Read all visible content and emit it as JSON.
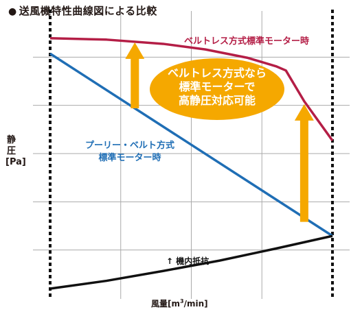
{
  "title": "送風機特性曲線図による比較",
  "ylabel": [
    "静",
    "圧",
    "[Pa]"
  ],
  "xlabel_prefix": "風量[m",
  "xlabel_sup": "3",
  "xlabel_suffix": "/min]",
  "colors": {
    "beltless": "#b41e46",
    "pulley": "#1f6eb5",
    "resistance": "#111111",
    "arrow": "#f5a800",
    "callout": "#f5a800",
    "grid": "#aaaaaa"
  },
  "chart_data": {
    "type": "line",
    "title": "送風機特性曲線図による比較",
    "xlabel": "風量[m3/min]",
    "ylabel": "静圧[Pa]",
    "xlim": [
      0,
      1
    ],
    "ylim": [
      0,
      1
    ],
    "axis_values_shown": false,
    "grid": true,
    "series": [
      {
        "name": "ベルトレス方式標準モーター時",
        "x": [
          0,
          0.2,
          0.4,
          0.55,
          0.7,
          0.8,
          0.835,
          0.9,
          1.0
        ],
        "y": [
          0.915,
          0.91,
          0.895,
          0.875,
          0.845,
          0.815,
          0.8,
          0.69,
          0.55
        ]
      },
      {
        "name": "プーリー・ベルト方式標準モーター時",
        "x": [
          0,
          1.0
        ],
        "y": [
          0.86,
          0.21
        ]
      },
      {
        "name": "機内抵抗",
        "x": [
          0,
          0.2,
          0.4,
          0.6,
          0.8,
          1.0
        ],
        "y": [
          0.022,
          0.05,
          0.085,
          0.122,
          0.165,
          0.21
        ]
      }
    ],
    "annotations": [
      {
        "text": "ベルトレス方式なら",
        "type": "callout"
      },
      {
        "text": "標準モーターで",
        "type": "callout"
      },
      {
        "text": "高静圧対応可能",
        "type": "callout"
      },
      {
        "text": "↑ 機内抵抗",
        "type": "label"
      }
    ],
    "arrows": [
      {
        "x": 0.3,
        "from_y": 0.665,
        "to_y": 0.9
      },
      {
        "x": 0.9,
        "from_y": 0.26,
        "to_y": 0.68
      }
    ]
  }
}
